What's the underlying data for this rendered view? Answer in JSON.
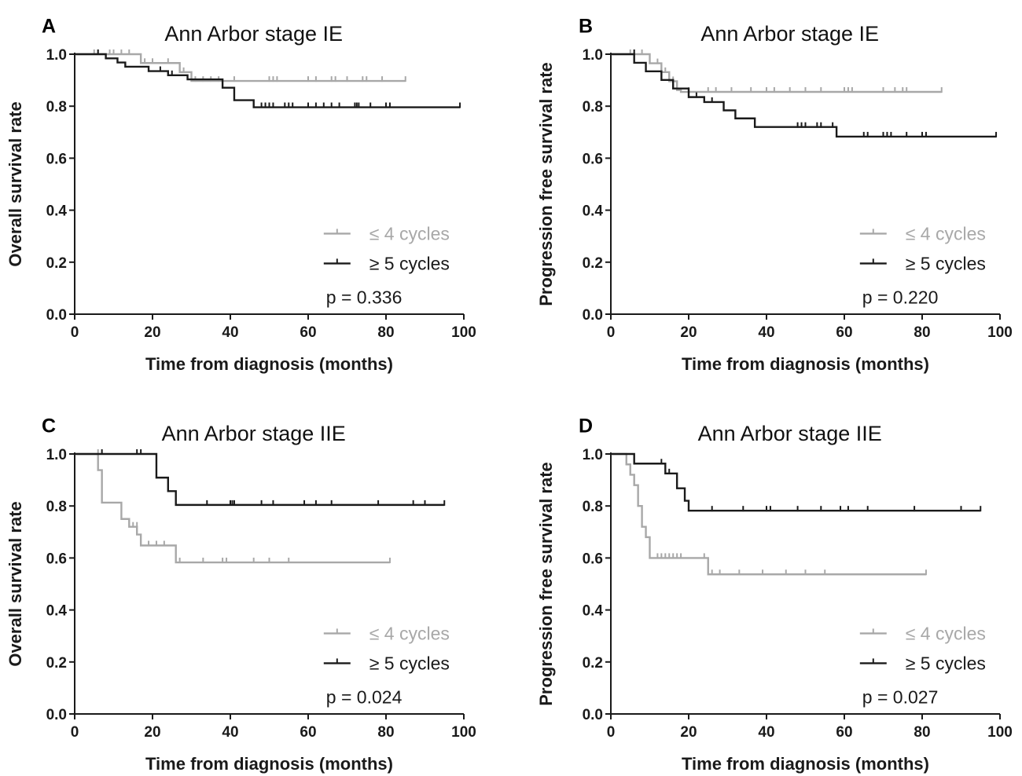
{
  "colors": {
    "le4": "#a8a8a8",
    "ge5": "#1a1a1a",
    "axis": "#1a1a1a"
  },
  "chart_data": [
    {
      "panel": "A",
      "type": "line",
      "title": "Ann Arbor stage IE",
      "xlabel": "Time from diagnosis (months)",
      "ylabel": "Overall survival rate",
      "xlim": [
        0,
        100
      ],
      "ylim": [
        0,
        1
      ],
      "xticks": [
        "0",
        "20",
        "40",
        "60",
        "80",
        "100"
      ],
      "yticks": [
        "0.0",
        "0.2",
        "0.4",
        "0.6",
        "0.8",
        "1.0"
      ],
      "legend_position": "bottom-right",
      "p_value": "p = 0.336",
      "series": [
        {
          "name": "≤ 4 cycles",
          "step_x": [
            0,
            17,
            27,
            30,
            85
          ],
          "step_y": [
            1.0,
            0.966,
            0.931,
            0.897,
            0.897
          ],
          "censor_x": [
            5,
            6,
            9,
            10,
            12,
            14,
            18,
            20,
            24,
            28,
            31,
            33,
            35,
            37,
            41,
            50,
            51,
            52,
            60,
            62,
            66,
            67,
            70,
            74,
            75,
            79,
            85
          ],
          "censor_y": [
            1.0,
            1.0,
            1.0,
            1.0,
            1.0,
            1.0,
            0.966,
            0.966,
            0.966,
            0.931,
            0.897,
            0.897,
            0.897,
            0.897,
            0.897,
            0.897,
            0.897,
            0.897,
            0.897,
            0.897,
            0.897,
            0.897,
            0.897,
            0.897,
            0.897,
            0.897,
            0.897
          ]
        },
        {
          "name": "≥ 5 cycles",
          "step_x": [
            0,
            8,
            11,
            13,
            19,
            24,
            29,
            38,
            41,
            46,
            99
          ],
          "step_y": [
            1.0,
            0.984,
            0.968,
            0.952,
            0.935,
            0.919,
            0.903,
            0.871,
            0.823,
            0.796,
            0.796
          ],
          "censor_x": [
            6,
            22,
            25,
            48,
            49,
            50,
            51,
            54,
            55,
            56,
            60,
            62,
            64,
            66,
            68,
            72,
            72.5,
            73,
            76,
            80,
            81,
            99
          ],
          "censor_y": [
            1.0,
            0.935,
            0.919,
            0.796,
            0.796,
            0.796,
            0.796,
            0.796,
            0.796,
            0.796,
            0.796,
            0.796,
            0.796,
            0.796,
            0.796,
            0.796,
            0.796,
            0.796,
            0.796,
            0.796,
            0.796,
            0.796
          ]
        }
      ]
    },
    {
      "panel": "B",
      "type": "line",
      "title": "Ann Arbor stage IE",
      "xlabel": "Time from diagnosis (months)",
      "ylabel": "Progression free survival rate",
      "xlim": [
        0,
        100
      ],
      "ylim": [
        0,
        1
      ],
      "xticks": [
        "0",
        "20",
        "40",
        "60",
        "80",
        "100"
      ],
      "yticks": [
        "0.0",
        "0.2",
        "0.4",
        "0.6",
        "0.8",
        "1.0"
      ],
      "legend_position": "bottom-right",
      "p_value": "p = 0.220",
      "series": [
        {
          "name": "≤ 4 cycles",
          "step_x": [
            0,
            10,
            13,
            15,
            17,
            18,
            85
          ],
          "step_y": [
            1.0,
            0.965,
            0.931,
            0.896,
            0.862,
            0.855,
            0.855
          ],
          "censor_x": [
            5,
            6,
            8,
            12,
            14,
            16,
            20,
            25,
            27,
            31,
            36,
            40,
            42,
            46,
            50,
            54,
            60,
            61,
            62,
            70,
            73,
            75,
            76,
            85
          ],
          "censor_y": [
            1.0,
            1.0,
            1.0,
            0.965,
            0.931,
            0.896,
            0.855,
            0.855,
            0.855,
            0.855,
            0.855,
            0.855,
            0.855,
            0.855,
            0.855,
            0.855,
            0.855,
            0.855,
            0.855,
            0.855,
            0.855,
            0.855,
            0.855,
            0.855
          ]
        },
        {
          "name": "≥ 5 cycles",
          "step_x": [
            0,
            6,
            9,
            13,
            16,
            20,
            24,
            29,
            32,
            37,
            58,
            99
          ],
          "step_y": [
            1.0,
            0.967,
            0.934,
            0.901,
            0.868,
            0.835,
            0.816,
            0.784,
            0.753,
            0.72,
            0.683,
            0.683
          ],
          "censor_x": [
            6,
            22,
            26,
            48,
            49,
            50,
            53,
            54,
            57,
            65,
            66,
            70,
            71,
            72,
            76,
            80,
            81,
            99
          ],
          "censor_y": [
            1.0,
            0.835,
            0.816,
            0.72,
            0.72,
            0.72,
            0.72,
            0.72,
            0.72,
            0.683,
            0.683,
            0.683,
            0.683,
            0.683,
            0.683,
            0.683,
            0.683,
            0.683
          ]
        }
      ]
    },
    {
      "panel": "C",
      "type": "line",
      "title": "Ann Arbor stage IIE",
      "xlabel": "Time from diagnosis (months)",
      "ylabel": "Overall survival rate",
      "xlim": [
        0,
        100
      ],
      "ylim": [
        0,
        1
      ],
      "xticks": [
        "0",
        "20",
        "40",
        "60",
        "80",
        "100"
      ],
      "yticks": [
        "0.0",
        "0.2",
        "0.4",
        "0.6",
        "0.8",
        "1.0"
      ],
      "legend_position": "bottom-right",
      "p_value": "p = 0.024",
      "series": [
        {
          "name": "≤ 4 cycles",
          "step_x": [
            0,
            6,
            7,
            12,
            14,
            16,
            17,
            26,
            81
          ],
          "step_y": [
            1.0,
            0.938,
            0.813,
            0.75,
            0.72,
            0.69,
            0.648,
            0.583,
            0.583
          ],
          "censor_x": [
            6,
            15,
            16,
            19,
            21,
            23,
            27,
            33,
            38,
            39,
            46,
            50,
            55,
            81
          ],
          "censor_y": [
            1.0,
            0.72,
            0.72,
            0.648,
            0.648,
            0.648,
            0.583,
            0.583,
            0.583,
            0.583,
            0.583,
            0.583,
            0.583,
            0.583
          ]
        },
        {
          "name": "≥ 5 cycles",
          "step_x": [
            0,
            21,
            24,
            26,
            29,
            95
          ],
          "step_y": [
            1.0,
            0.909,
            0.857,
            0.804,
            0.804,
            0.804
          ],
          "censor_x": [
            7,
            16,
            17,
            34,
            40,
            40.5,
            41,
            48,
            51,
            59,
            62,
            66,
            78,
            87,
            90,
            95
          ],
          "censor_y": [
            1.0,
            1.0,
            1.0,
            0.804,
            0.804,
            0.804,
            0.804,
            0.804,
            0.804,
            0.804,
            0.804,
            0.804,
            0.804,
            0.804,
            0.804,
            0.804
          ]
        }
      ]
    },
    {
      "panel": "D",
      "type": "line",
      "title": "Ann Arbor stage IIE",
      "xlabel": "Time from diagnosis (months)",
      "ylabel": "Progression free survival rate",
      "xlim": [
        0,
        100
      ],
      "ylim": [
        0,
        1
      ],
      "xticks": [
        "0",
        "20",
        "40",
        "60",
        "80",
        "100"
      ],
      "yticks": [
        "0.0",
        "0.2",
        "0.4",
        "0.6",
        "0.8",
        "1.0"
      ],
      "legend_position": "bottom-right",
      "p_value": "p = 0.027",
      "series": [
        {
          "name": "≤ 4 cycles",
          "step_x": [
            0,
            4,
            5,
            6,
            7,
            8,
            9,
            10,
            25,
            81
          ],
          "step_y": [
            1.0,
            0.96,
            0.92,
            0.88,
            0.8,
            0.72,
            0.68,
            0.6,
            0.537,
            0.537
          ],
          "censor_x": [
            4,
            12,
            13,
            14,
            15,
            16,
            17,
            18,
            24,
            26,
            28,
            33,
            39,
            45,
            50,
            55,
            81
          ],
          "censor_y": [
            0.96,
            0.6,
            0.6,
            0.6,
            0.6,
            0.6,
            0.6,
            0.6,
            0.6,
            0.537,
            0.537,
            0.537,
            0.537,
            0.537,
            0.537,
            0.537,
            0.537
          ]
        },
        {
          "name": "≥ 5 cycles",
          "step_x": [
            0,
            6,
            14,
            17,
            19,
            20,
            95
          ],
          "step_y": [
            1.0,
            0.963,
            0.925,
            0.868,
            0.82,
            0.782,
            0.782
          ],
          "censor_x": [
            13,
            15,
            26,
            34,
            40,
            41,
            48,
            54,
            59,
            61,
            66,
            78,
            90,
            95
          ],
          "censor_y": [
            0.963,
            0.925,
            0.782,
            0.782,
            0.782,
            0.782,
            0.782,
            0.782,
            0.782,
            0.782,
            0.782,
            0.782,
            0.782,
            0.782
          ]
        }
      ]
    }
  ]
}
